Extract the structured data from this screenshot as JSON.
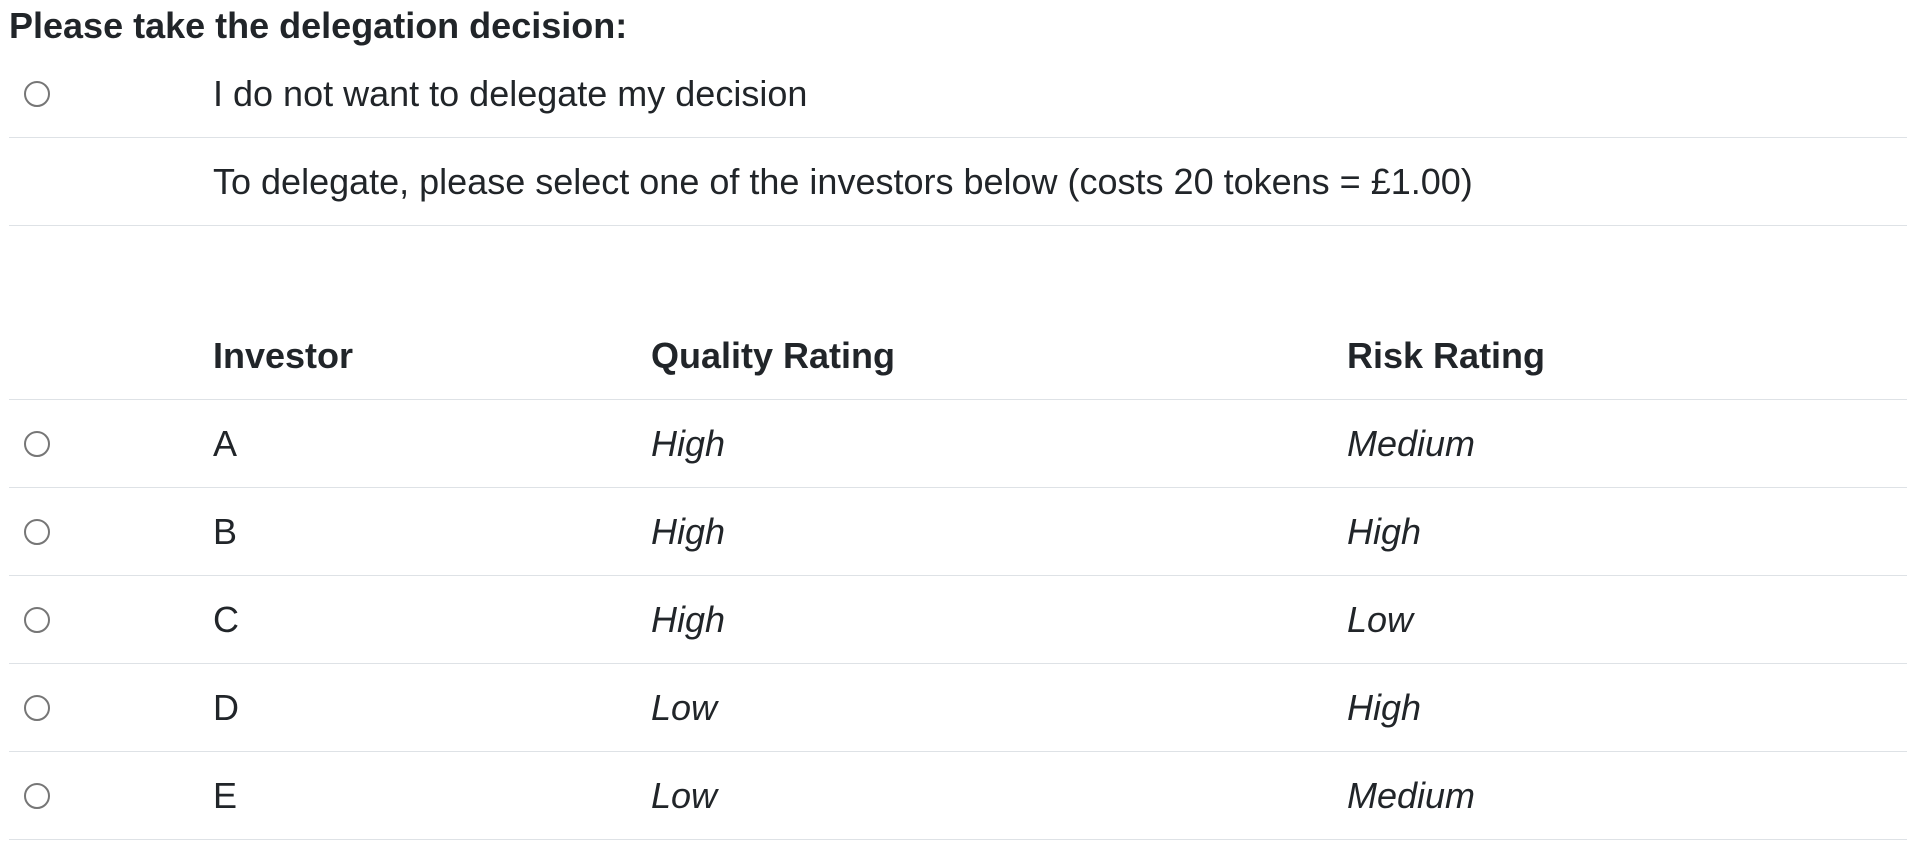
{
  "heading": "Please take the delegation decision:",
  "no_delegate": {
    "label": "I do not want to delegate my decision"
  },
  "delegate_note": "To delegate, please select one of the investors below (costs 20 tokens = £1.00)",
  "table": {
    "headers": [
      "Investor",
      "Quality Rating",
      "Risk Rating"
    ],
    "rows": [
      {
        "investor": "A",
        "quality": "High",
        "risk": "Medium"
      },
      {
        "investor": "B",
        "quality": "High",
        "risk": "High"
      },
      {
        "investor": "C",
        "quality": "High",
        "risk": "Low"
      },
      {
        "investor": "D",
        "quality": "Low",
        "risk": "High"
      },
      {
        "investor": "E",
        "quality": "Low",
        "risk": "Medium"
      }
    ]
  }
}
